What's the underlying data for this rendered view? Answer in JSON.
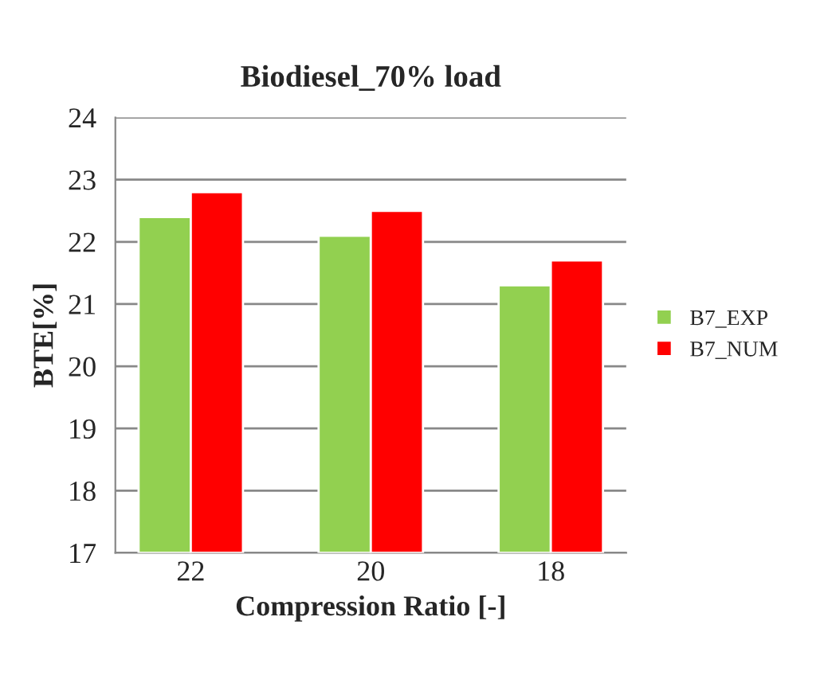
{
  "chart_data": {
    "type": "bar",
    "title": "Biodiesel_70% load",
    "xlabel": "Compression Ratio [-]",
    "ylabel": "BTE[%]",
    "categories": [
      "22",
      "20",
      "18"
    ],
    "series": [
      {
        "name": "B7_EXP",
        "color": "#92d050",
        "values": [
          22.4,
          22.1,
          21.3
        ]
      },
      {
        "name": "B7_NUM",
        "color": "#ff0000",
        "values": [
          22.8,
          22.5,
          21.7
        ]
      }
    ],
    "ylim": [
      17,
      24
    ],
    "yticks": [
      17,
      18,
      19,
      20,
      21,
      22,
      23,
      24
    ],
    "grid": "y",
    "legend": "right"
  }
}
